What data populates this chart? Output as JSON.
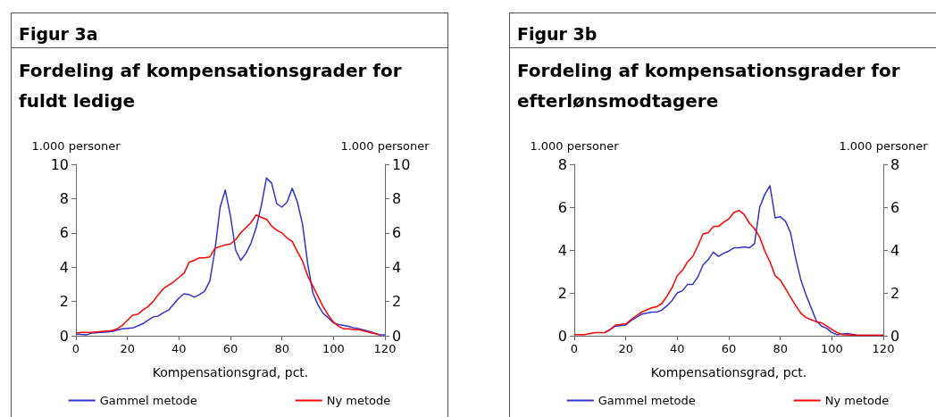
{
  "chart_data": [
    {
      "type": "line",
      "title": "Figur 3a",
      "subtitle": "Fordeling af kompensationsgrader for fuldt ledige",
      "xlabel": "Kompensationsgrad, pct.",
      "ylabel": "1.000 personer",
      "y2label": "1.000 personer",
      "xlim": [
        0,
        120
      ],
      "xticks": [
        0,
        20,
        40,
        60,
        80,
        100,
        120
      ],
      "ylim": [
        0,
        10
      ],
      "yticks": [
        0,
        2,
        4,
        6,
        8,
        10
      ],
      "y2lim": [
        0,
        10
      ],
      "y2ticks": [
        0,
        2,
        4,
        6,
        8,
        10
      ],
      "grid": false,
      "legend": "bottom",
      "marker": "none",
      "line_style": "solid",
      "series": [
        {
          "name": "Gammel metode",
          "color": "#3333cc",
          "x": [
            0,
            4,
            6,
            10,
            14,
            18,
            22,
            26,
            28,
            30,
            32,
            34,
            36,
            38,
            40,
            42,
            44,
            46,
            48,
            50,
            52,
            54,
            56,
            58,
            60,
            62,
            64,
            66,
            68,
            70,
            72,
            74,
            76,
            78,
            80,
            82,
            84,
            86,
            88,
            90,
            92,
            94,
            96,
            98,
            100,
            102,
            104,
            106,
            108,
            110,
            114,
            118,
            120
          ],
          "values": [
            0.1,
            0.05,
            0.15,
            0.2,
            0.25,
            0.4,
            0.45,
            0.7,
            0.9,
            1.1,
            1.15,
            1.35,
            1.5,
            1.85,
            2.2,
            2.45,
            2.4,
            2.25,
            2.4,
            2.6,
            3.2,
            5.0,
            7.5,
            8.5,
            7.0,
            5.0,
            4.4,
            4.8,
            5.4,
            6.3,
            7.6,
            9.2,
            8.9,
            7.7,
            7.5,
            7.8,
            8.6,
            7.8,
            6.5,
            4.2,
            2.5,
            1.8,
            1.3,
            1.05,
            0.75,
            0.65,
            0.6,
            0.55,
            0.45,
            0.4,
            0.25,
            0.05,
            0.05
          ]
        },
        {
          "name": "Ny metode",
          "color": "#ff0000",
          "x": [
            0,
            2,
            6,
            10,
            14,
            16,
            18,
            20,
            22,
            24,
            26,
            28,
            30,
            32,
            34,
            36,
            38,
            40,
            42,
            44,
            46,
            48,
            50,
            52,
            54,
            56,
            58,
            60,
            62,
            64,
            66,
            68,
            70,
            72,
            74,
            76,
            78,
            80,
            82,
            84,
            86,
            88,
            90,
            92,
            94,
            96,
            98,
            100,
            102,
            104,
            106,
            108,
            110,
            114,
            118
          ],
          "values": [
            0.15,
            0.2,
            0.2,
            0.25,
            0.3,
            0.4,
            0.6,
            0.9,
            1.2,
            1.25,
            1.5,
            1.7,
            2.0,
            2.4,
            2.75,
            2.95,
            3.15,
            3.4,
            3.65,
            4.3,
            4.4,
            4.55,
            4.55,
            4.6,
            5.1,
            5.2,
            5.3,
            5.35,
            5.6,
            6.0,
            6.3,
            6.6,
            7.05,
            6.9,
            6.8,
            6.4,
            6.15,
            6.0,
            5.7,
            5.5,
            4.9,
            4.35,
            3.5,
            2.9,
            2.3,
            1.7,
            1.2,
            0.8,
            0.55,
            0.4,
            0.4,
            0.35,
            0.35,
            0.2,
            0.05
          ]
        }
      ]
    },
    {
      "type": "line",
      "title": "Figur 3b",
      "subtitle": "Fordeling af kompensationsgrader for efterlønsmodtagere",
      "xlabel": "Kompensationsgrad, pct.",
      "ylabel": "1.000 personer",
      "y2label": "1.000 personer",
      "xlim": [
        0,
        120
      ],
      "xticks": [
        0,
        20,
        40,
        60,
        80,
        100,
        120
      ],
      "ylim": [
        0,
        8
      ],
      "yticks": [
        0,
        2,
        4,
        6,
        8
      ],
      "y2lim": [
        0,
        8
      ],
      "y2ticks": [
        0,
        2,
        4,
        6,
        8
      ],
      "grid": false,
      "legend": "bottom",
      "marker": "none",
      "line_style": "solid",
      "series": [
        {
          "name": "Gammel metode",
          "color": "#3333cc",
          "x": [
            12,
            14,
            16,
            20,
            22,
            24,
            26,
            30,
            32,
            34,
            36,
            38,
            40,
            42,
            44,
            46,
            48,
            50,
            52,
            54,
            56,
            58,
            60,
            62,
            64,
            66,
            68,
            70,
            72,
            74,
            76,
            78,
            80,
            82,
            84,
            86,
            88,
            90,
            92,
            94,
            96,
            98,
            100,
            102,
            106,
            110,
            120
          ],
          "values": [
            0.15,
            0.3,
            0.45,
            0.5,
            0.7,
            0.85,
            1.0,
            1.1,
            1.1,
            1.2,
            1.4,
            1.65,
            2.0,
            2.1,
            2.4,
            2.4,
            2.75,
            3.3,
            3.55,
            3.9,
            3.7,
            3.85,
            3.95,
            4.1,
            4.1,
            4.15,
            4.1,
            4.3,
            6.0,
            6.6,
            7.0,
            5.5,
            5.55,
            5.35,
            4.8,
            3.6,
            2.6,
            1.9,
            1.3,
            0.7,
            0.45,
            0.35,
            0.15,
            0.05,
            0.1,
            0.02,
            0.02
          ]
        },
        {
          "name": "Ny metode",
          "color": "#ff0000",
          "x": [
            0,
            4,
            8,
            12,
            14,
            16,
            20,
            22,
            26,
            28,
            30,
            32,
            34,
            36,
            38,
            40,
            42,
            44,
            46,
            48,
            50,
            52,
            54,
            56,
            58,
            60,
            62,
            64,
            66,
            68,
            70,
            72,
            74,
            76,
            78,
            80,
            82,
            84,
            86,
            88,
            90,
            92,
            94,
            96,
            98,
            100,
            102,
            104,
            110,
            120
          ],
          "values": [
            0.05,
            0.05,
            0.15,
            0.15,
            0.3,
            0.5,
            0.55,
            0.75,
            1.1,
            1.2,
            1.3,
            1.35,
            1.5,
            1.85,
            2.25,
            2.8,
            3.05,
            3.45,
            3.7,
            4.2,
            4.75,
            4.8,
            5.1,
            5.1,
            5.3,
            5.45,
            5.75,
            5.85,
            5.65,
            5.25,
            5.0,
            4.6,
            3.95,
            3.45,
            2.8,
            2.6,
            2.2,
            1.8,
            1.4,
            1.05,
            0.85,
            0.75,
            0.65,
            0.6,
            0.45,
            0.3,
            0.15,
            0.05,
            0.02,
            0.02
          ]
        }
      ]
    }
  ]
}
